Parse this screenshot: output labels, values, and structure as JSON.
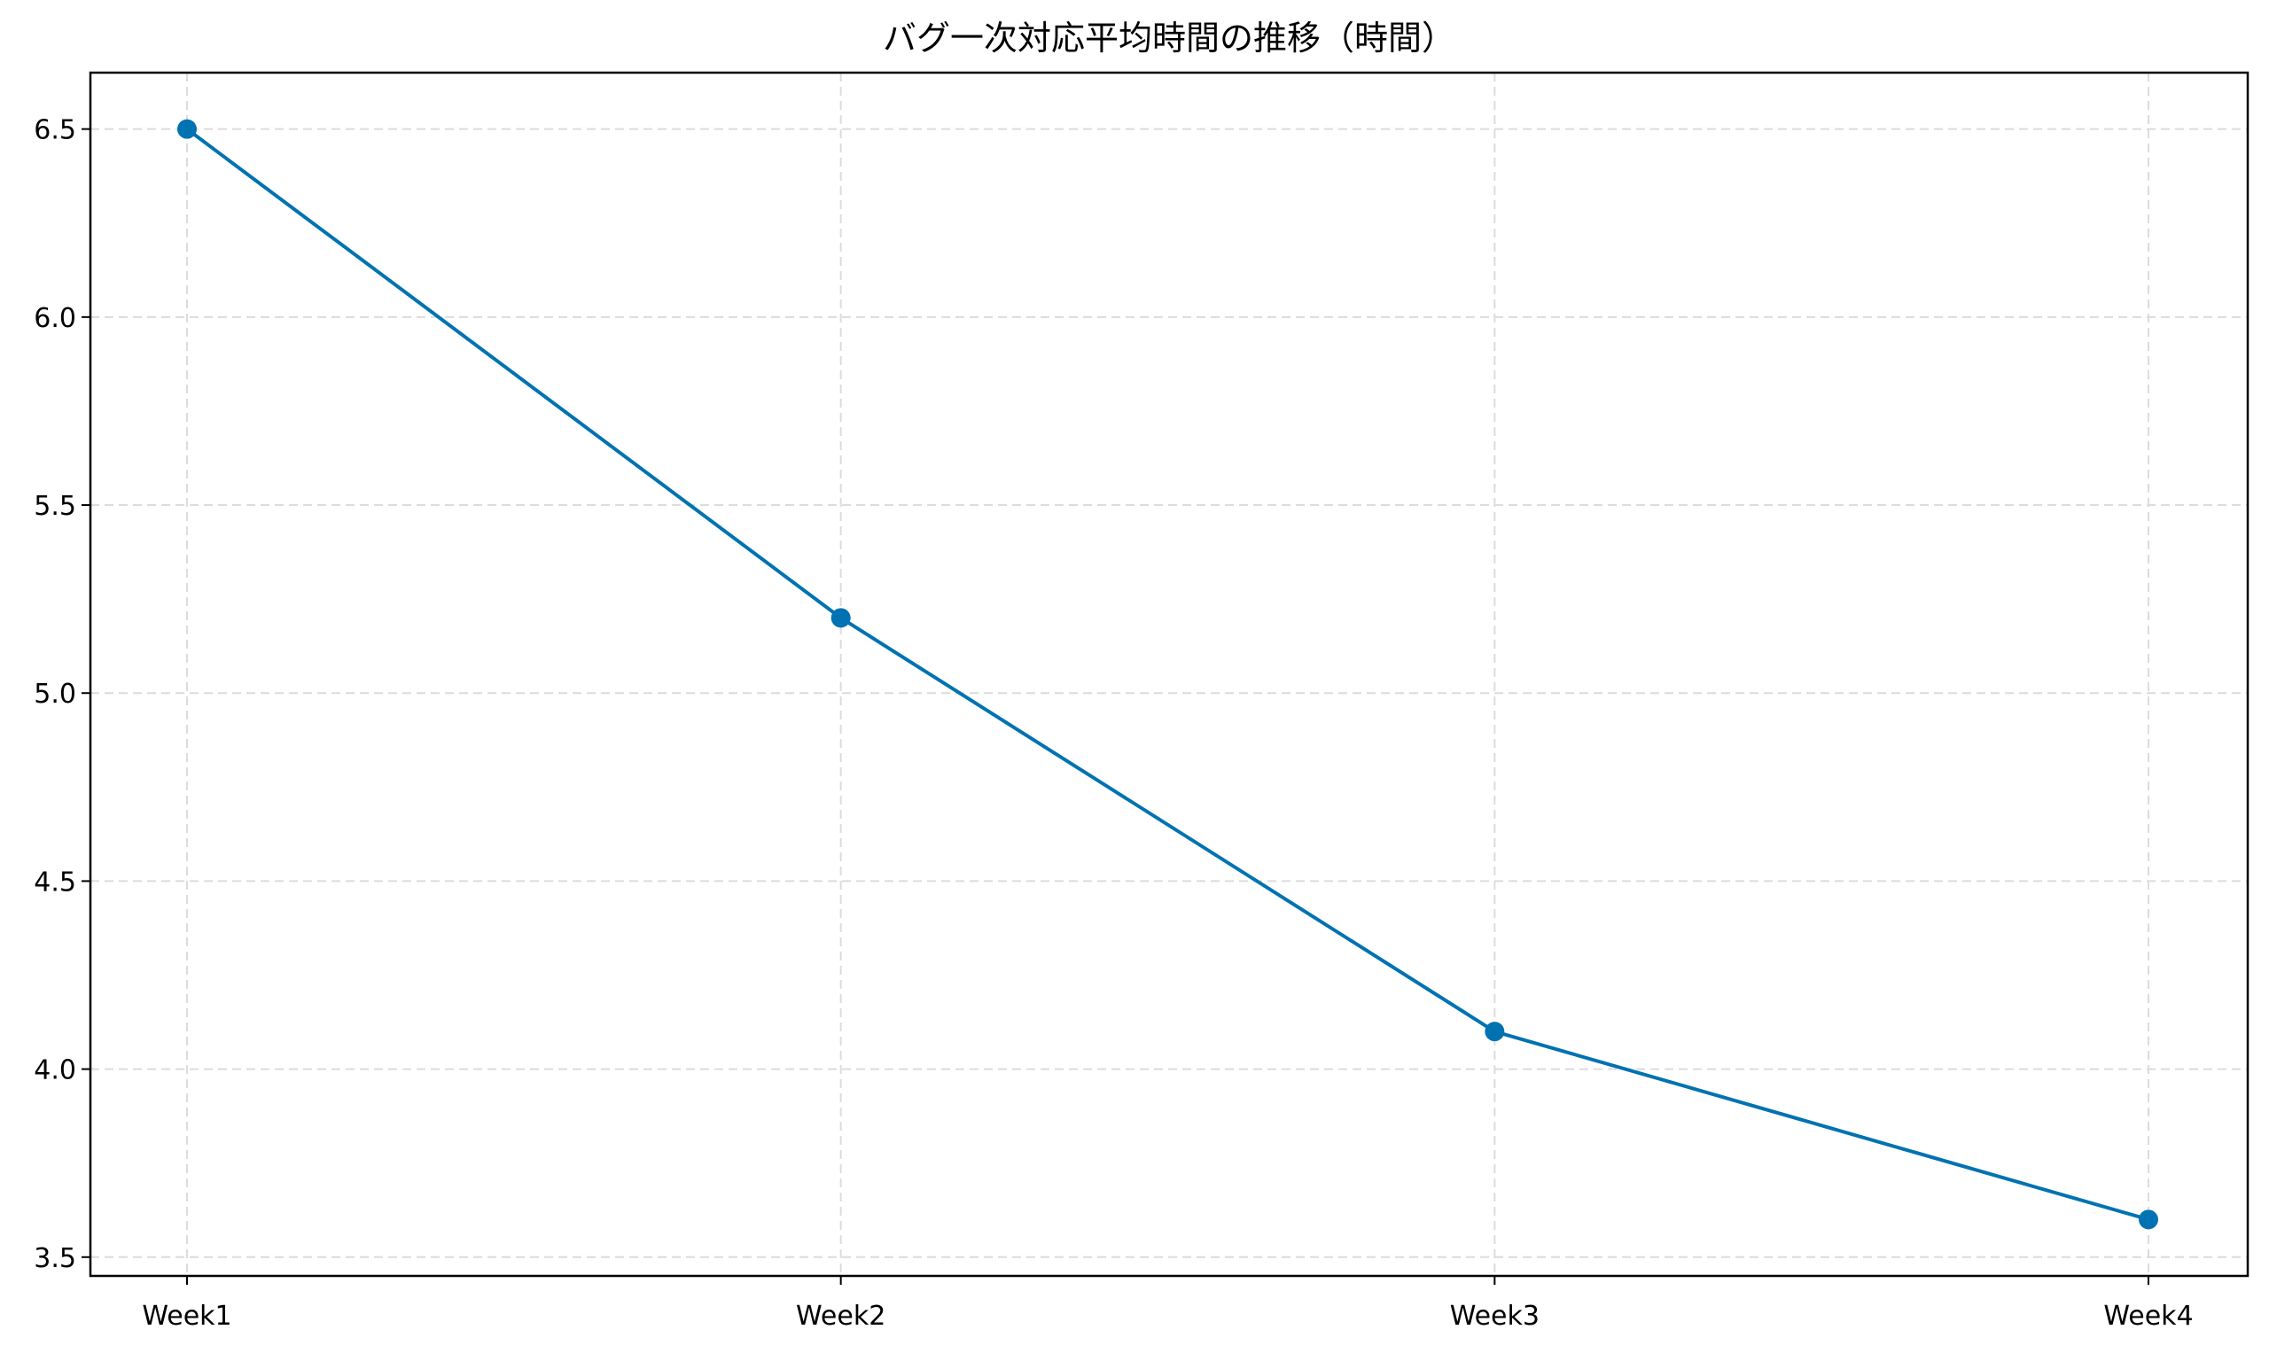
{
  "chart_data": {
    "type": "line",
    "title": "バグ一次対応平均時間の推移（時間）",
    "xlabel": "",
    "ylabel": "",
    "categories": [
      "Week1",
      "Week2",
      "Week3",
      "Week4"
    ],
    "series": [
      {
        "values": [
          6.5,
          5.2,
          4.1,
          3.6
        ],
        "color": "#0072b2",
        "marker": "circle"
      }
    ],
    "ylim": [
      3.45,
      6.65
    ],
    "yticks": [
      "3.5",
      "4.0",
      "4.5",
      "5.0",
      "5.5",
      "6.0",
      "6.5"
    ],
    "grid": true,
    "grid_style": "dashed",
    "legend": "none"
  }
}
